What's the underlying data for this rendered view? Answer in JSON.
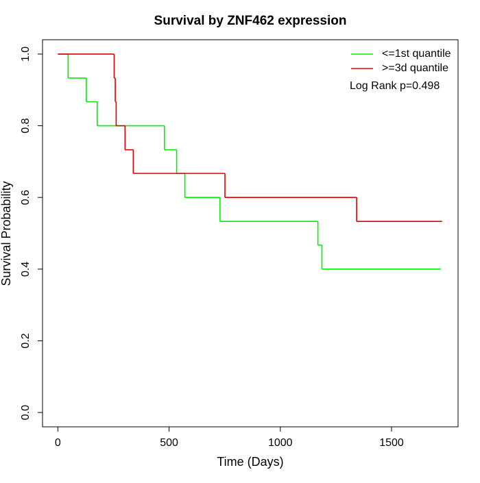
{
  "chart_data": {
    "type": "step",
    "title": "Survival by ZNF462 expression",
    "x_label": "Time (Days)",
    "y_label": "Survival Probability",
    "annotation": "Log Rank p=0.498",
    "legend_position": "top-right",
    "xlim": [
      -69,
      1799
    ],
    "ylim": [
      -0.04,
      1.04
    ],
    "xticks": [
      0,
      500,
      1000,
      1500
    ],
    "yticks": [
      {
        "value": 0,
        "label": "0.0"
      },
      0.2,
      0.4,
      0.6,
      0.8,
      {
        "value": 1,
        "label": "1.0"
      }
    ],
    "series": [
      {
        "name": "<=1st quantile",
        "color": "#00ee00",
        "x": [
          0,
          46,
          128,
          177,
          479,
          534,
          571,
          729,
          1169,
          1187,
          1721
        ],
        "values": [
          1.0,
          0.933,
          0.867,
          0.8,
          0.733,
          0.667,
          0.6,
          0.533,
          0.467,
          0.4,
          0.4
        ]
      },
      {
        "name": ">=3d quantile",
        "color": "#dd0000",
        "x": [
          0,
          253,
          258,
          262,
          302,
          339,
          751,
          1343,
          1727
        ],
        "values": [
          1.0,
          0.933,
          0.867,
          0.8,
          0.733,
          0.667,
          0.6,
          0.533,
          0.533
        ]
      }
    ]
  }
}
